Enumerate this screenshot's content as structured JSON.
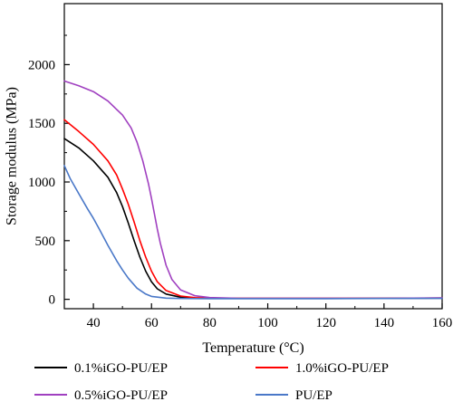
{
  "chart_data": {
    "type": "line",
    "title": "",
    "xlabel": "Temperature (°C)",
    "ylabel": "Storage modulus (MPa)",
    "xlim": [
      30,
      160
    ],
    "ylim": [
      -80,
      2520
    ],
    "xticks": [
      40,
      60,
      80,
      100,
      120,
      140,
      160
    ],
    "yticks": [
      0,
      500,
      1000,
      1500,
      2000
    ],
    "grid": false,
    "legend_position": "bottom",
    "series": [
      {
        "name": "0.1%iGO-PU/EP",
        "color": "#000000",
        "x": [
          30,
          35,
          40,
          45,
          48,
          50,
          52,
          54,
          56,
          58,
          60,
          62,
          65,
          70,
          75,
          80,
          90,
          100,
          120,
          140,
          160
        ],
        "y": [
          1370,
          1290,
          1180,
          1040,
          910,
          790,
          650,
          500,
          360,
          240,
          150,
          90,
          45,
          18,
          10,
          8,
          7,
          7,
          7,
          8,
          10
        ]
      },
      {
        "name": "1.0%iGO-PU/EP",
        "color": "#ff0000",
        "x": [
          30,
          35,
          40,
          45,
          48,
          50,
          52,
          54,
          56,
          58,
          60,
          62,
          65,
          70,
          75,
          80,
          90,
          100,
          120,
          140,
          160
        ],
        "y": [
          1530,
          1430,
          1320,
          1180,
          1060,
          940,
          810,
          660,
          500,
          360,
          240,
          150,
          75,
          28,
          14,
          10,
          8,
          8,
          8,
          9,
          11
        ]
      },
      {
        "name": "0.5%iGO-PU/EP",
        "color": "#a040c0",
        "x": [
          30,
          35,
          40,
          45,
          50,
          53,
          55,
          57,
          59,
          60,
          61,
          62,
          63,
          65,
          67,
          70,
          75,
          80,
          90,
          100,
          120,
          140,
          160
        ],
        "y": [
          1860,
          1820,
          1770,
          1690,
          1570,
          1460,
          1340,
          1180,
          980,
          860,
          730,
          600,
          480,
          290,
          170,
          80,
          30,
          15,
          9,
          8,
          8,
          9,
          12
        ]
      },
      {
        "name": "PU/EP",
        "color": "#4a78c8",
        "x": [
          30,
          32,
          35,
          38,
          40,
          42,
          45,
          48,
          50,
          52,
          55,
          58,
          60,
          65,
          70,
          80,
          100,
          120,
          140,
          160
        ],
        "y": [
          1140,
          1030,
          900,
          770,
          690,
          600,
          460,
          330,
          250,
          180,
          95,
          45,
          25,
          10,
          7,
          6,
          6,
          6,
          7,
          8
        ]
      }
    ]
  }
}
